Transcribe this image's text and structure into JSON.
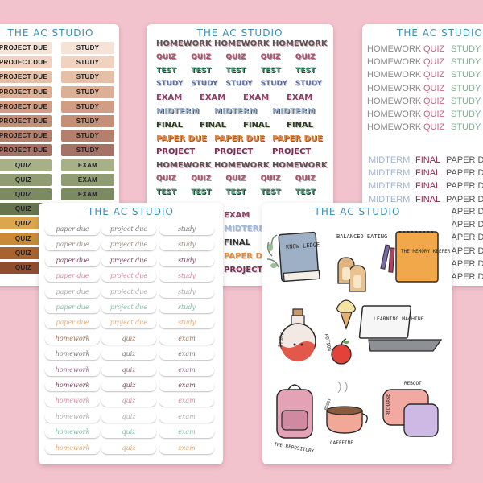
{
  "brand": "THE AC STUDIO",
  "sheet1": {
    "rows": [
      {
        "left": "PROJECT DUE",
        "right": "STUDY",
        "color": "#f6e3d7"
      },
      {
        "left": "PROJECT DUE",
        "right": "STUDY",
        "color": "#efd2bf"
      },
      {
        "left": "PROJECT DUE",
        "right": "STUDY",
        "color": "#e6c0a6"
      },
      {
        "left": "PROJECT DUE",
        "right": "STUDY",
        "color": "#ddaf94"
      },
      {
        "left": "PROJECT DUE",
        "right": "STUDY",
        "color": "#d19e84"
      },
      {
        "left": "PROJECT DUE",
        "right": "STUDY",
        "color": "#c58e76"
      },
      {
        "left": "PROJECT DUE",
        "right": "STUDY",
        "color": "#b57f6d"
      },
      {
        "left": "PROJECT DUE",
        "right": "STUDY",
        "color": "#a67265"
      },
      {
        "left": "QUIZ",
        "right": "EXAM",
        "color": "#a7b187"
      },
      {
        "left": "QUIZ",
        "right": "EXAM",
        "color": "#909d72"
      },
      {
        "left": "QUIZ",
        "right": "EXAM",
        "color": "#7c8a62"
      },
      {
        "left": "QUIZ",
        "right": "EXAM",
        "color": "#66744f"
      },
      {
        "left": "QUIZ",
        "right": "EXAM",
        "color": "#dca64a"
      },
      {
        "left": "QUIZ",
        "right": "EXAM",
        "color": "#c98a35"
      },
      {
        "left": "QUIZ",
        "right": "EXAM",
        "color": "#a9632f"
      },
      {
        "left": "QUIZ",
        "right": "EXAM",
        "color": "#8f4d2d"
      }
    ]
  },
  "sheet2": {
    "rows": [
      {
        "words": [
          "HOMEWORK",
          "HOMEWORK",
          "HOMEWORK"
        ],
        "color": "#555",
        "shadow": "#e8a6b6"
      },
      {
        "words": [
          "QUIZ",
          "QUIZ",
          "QUIZ",
          "QUIZ",
          "QUIZ"
        ],
        "color": "#b0506d",
        "shadow": "#999"
      },
      {
        "words": [
          "TEST",
          "TEST",
          "TEST",
          "TEST",
          "TEST"
        ],
        "color": "#49a27c",
        "shadow": "#333"
      },
      {
        "words": [
          "STUDY",
          "STUDY",
          "STUDY",
          "STUDY",
          "STUDY"
        ],
        "color": "#5d6d9c",
        "shadow": "#ccc"
      },
      {
        "words": [
          "EXAM",
          "EXAM",
          "EXAM",
          "EXAM"
        ],
        "color": "#913e68",
        "shadow": "#eee"
      },
      {
        "words": [
          "MIDTERM",
          "MIDTERM",
          "MIDTERM"
        ],
        "color": "#9fb8d8",
        "shadow": "#555"
      },
      {
        "words": [
          "FINAL",
          "FINAL",
          "FINAL",
          "FINAL"
        ],
        "color": "#333",
        "shadow": "#b7d6a2"
      },
      {
        "words": [
          "PAPER DUE",
          "PAPER DUE",
          "PAPER DUE"
        ],
        "color": "#e68a37",
        "shadow": "#a34f3b"
      },
      {
        "words": [
          "PROJECT",
          "PROJECT",
          "PROJECT"
        ],
        "color": "#7b2f55",
        "shadow": "#eee"
      },
      {
        "words": [
          "HOMEWORK",
          "HOMEWORK",
          "HOMEWORK"
        ],
        "color": "#555",
        "shadow": "#e8a6b6"
      },
      {
        "words": [
          "QUIZ",
          "QUIZ",
          "QUIZ",
          "QUIZ",
          "QUIZ"
        ],
        "color": "#b0506d",
        "shadow": "#999"
      },
      {
        "words": [
          "TEST",
          "TEST",
          "TEST",
          "TEST",
          "TEST"
        ],
        "color": "#49a27c",
        "shadow": "#333"
      }
    ],
    "overflow": [
      {
        "word": "EXAM",
        "color": "#913e68"
      },
      {
        "word": "MIDTERM",
        "color": "#9fb8d8"
      },
      {
        "word": "FINAL",
        "color": "#333"
      },
      {
        "word": "PAPER DUE",
        "color": "#e68a37"
      },
      {
        "word": "PROJECT",
        "color": "#7b2f55"
      }
    ]
  },
  "sheet3": {
    "rows_a": [
      [
        "HOMEWORK",
        "QUIZ",
        "STUDY"
      ],
      [
        "HOMEWORK",
        "QUIZ",
        "STUDY"
      ],
      [
        "HOMEWORK",
        "QUIZ",
        "STUDY"
      ],
      [
        "HOMEWORK",
        "QUIZ",
        "STUDY"
      ],
      [
        "HOMEWORK",
        "QUIZ",
        "STUDY"
      ],
      [
        "HOMEWORK",
        "QUIZ",
        "STUDY"
      ],
      [
        "HOMEWORK",
        "QUIZ",
        "STUDY"
      ]
    ],
    "rows_b": [
      [
        "MIDTERM",
        "FINAL",
        "PAPER DUE"
      ],
      [
        "MIDTERM",
        "FINAL",
        "PAPER DUE"
      ],
      [
        "MIDTERM",
        "FINAL",
        "PAPER DUE"
      ],
      [
        "MIDTERM",
        "FINAL",
        "PAPER DUE"
      ]
    ],
    "overflow_right": [
      "PAPER DUE",
      "PAPER DUE",
      "PAPER DUE",
      "PAPER DUE",
      "PAPER DUE",
      "PAPER DUE",
      "PAPER DUE"
    ],
    "colors": {
      "col1": "#8a8a8a",
      "col2": "#c8637e",
      "col3": "#7fae8c",
      "col1b": "#9ab6d6",
      "col2b": "#8a2c52",
      "col3b": "#555555"
    }
  },
  "sheet4": {
    "rows": [
      {
        "words": [
          "paper due",
          "project due",
          "study"
        ],
        "color": "#7a7a7a"
      },
      {
        "words": [
          "paper due",
          "project due",
          "study"
        ],
        "color": "#9a8a7d"
      },
      {
        "words": [
          "paper due",
          "project due",
          "study"
        ],
        "color": "#7b3f5e"
      },
      {
        "words": [
          "paper due",
          "project due",
          "study"
        ],
        "color": "#d98aa0"
      },
      {
        "words": [
          "paper due",
          "project due",
          "study"
        ],
        "color": "#a9a9a9"
      },
      {
        "words": [
          "paper due",
          "project due",
          "study"
        ],
        "color": "#7fbfa6"
      },
      {
        "words": [
          "paper due",
          "project due",
          "study"
        ],
        "color": "#e8a870"
      },
      {
        "words": [
          "homework",
          "quiz",
          "exam"
        ],
        "color": "#a0765a"
      },
      {
        "words": [
          "homework",
          "quiz",
          "exam"
        ],
        "color": "#7a7a7a"
      },
      {
        "words": [
          "homework",
          "quiz",
          "exam"
        ],
        "color": "#9a6b80"
      },
      {
        "words": [
          "homework",
          "quiz",
          "exam"
        ],
        "color": "#7b3f5e"
      },
      {
        "words": [
          "homework",
          "quiz",
          "exam"
        ],
        "color": "#d98aa0"
      },
      {
        "words": [
          "homework",
          "quiz",
          "exam"
        ],
        "color": "#b0b0b0"
      },
      {
        "words": [
          "homework",
          "quiz",
          "exam"
        ],
        "color": "#7fbfa6"
      },
      {
        "words": [
          "homework",
          "quiz",
          "exam"
        ],
        "color": "#e8a870"
      }
    ]
  },
  "sheet5": {
    "book_label": "KNOW LEDGE",
    "eating_label": "BALANCED EATING",
    "keeper_label": "THE MEMORY KEEPER",
    "potion_left": "STUDY",
    "potion_right": "POTION",
    "laptop_label": "LEARNING MACHINE",
    "backpack_label": "THE REPOSITORY",
    "coffee_boost": "BOOST",
    "coffee_label": "CAFFEINE",
    "pillow_top": "REBOOT",
    "pillow_side": "RECHARGE"
  }
}
